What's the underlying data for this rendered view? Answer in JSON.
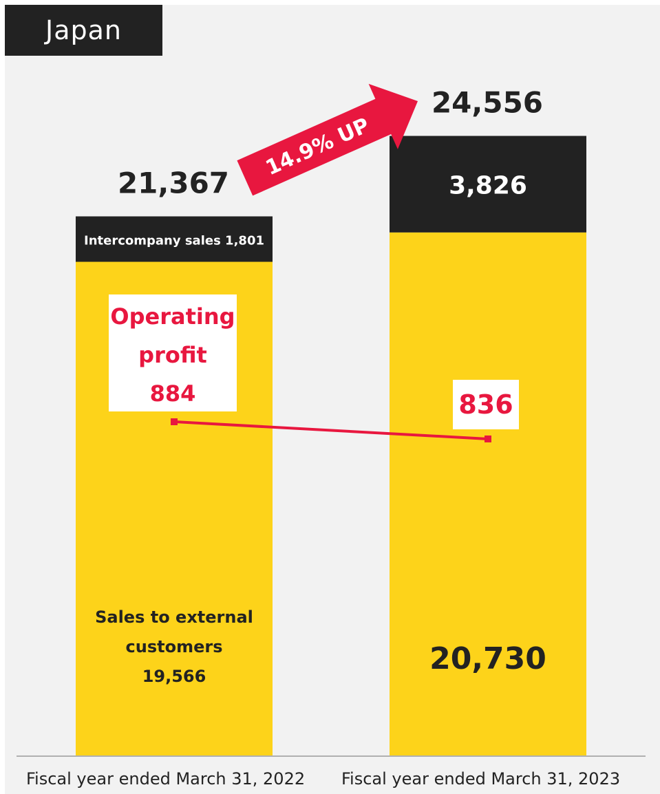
{
  "header": {
    "title": "Japan"
  },
  "chart_data": {
    "type": "bar",
    "stacked": true,
    "categories": [
      "Fiscal year ended March 31, 2022",
      "Fiscal year ended March 31, 2023"
    ],
    "series": [
      {
        "name": "Sales to external customers",
        "values": [
          19566,
          20730
        ],
        "color": "#fdd31a"
      },
      {
        "name": "Intercompany sales",
        "values": [
          1801,
          3826
        ],
        "color": "#222222"
      }
    ],
    "totals": [
      21367,
      24556
    ],
    "total_labels": [
      "21,367",
      "24,556"
    ],
    "segment_labels": {
      "external": [
        "19,566",
        "20,730"
      ],
      "intercompany": [
        "Intercompany sales 1,801",
        "3,826"
      ]
    },
    "external_label_text": [
      "Sales to external",
      "customers"
    ],
    "operating_profit": {
      "name": "Operating profit",
      "title_lines": [
        "Operating",
        "profit"
      ],
      "values": [
        884,
        836
      ],
      "labels": [
        "884",
        "836"
      ],
      "color": "#e8173f"
    },
    "growth_annotation": "14.9% UP",
    "accent_color": "#e8173f",
    "grid": false,
    "legend": "none"
  }
}
